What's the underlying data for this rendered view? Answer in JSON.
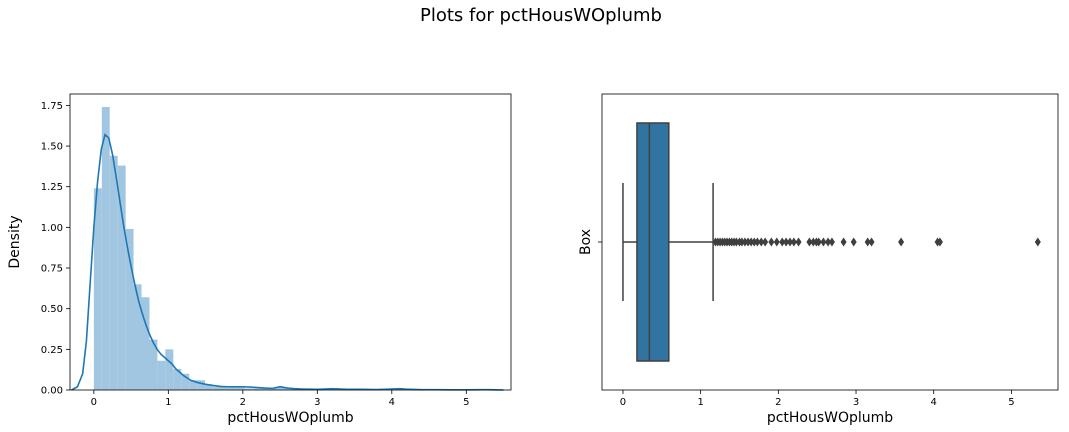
{
  "figure": {
    "title": "Plots for pctHousWOplumb"
  },
  "chart_data": [
    {
      "type": "histogram",
      "title": "",
      "xlabel": "pctHousWOplumb",
      "ylabel": "Density",
      "xlim": [
        -0.32,
        5.6
      ],
      "ylim": [
        0,
        1.82
      ],
      "xticks": [
        0,
        1,
        2,
        3,
        4,
        5
      ],
      "yticks": [
        0.0,
        0.25,
        0.5,
        0.75,
        1.0,
        1.25,
        1.5,
        1.75
      ],
      "bar_color": "#a1c6e1",
      "line_color": "#1f77b4",
      "bins": [
        {
          "x0": 0.0,
          "x1": 0.107,
          "density": 1.24
        },
        {
          "x0": 0.107,
          "x1": 0.213,
          "density": 1.74
        },
        {
          "x0": 0.213,
          "x1": 0.32,
          "density": 1.44
        },
        {
          "x0": 0.32,
          "x1": 0.427,
          "density": 1.38
        },
        {
          "x0": 0.427,
          "x1": 0.533,
          "density": 0.99
        },
        {
          "x0": 0.533,
          "x1": 0.64,
          "density": 0.65
        },
        {
          "x0": 0.64,
          "x1": 0.747,
          "density": 0.57
        },
        {
          "x0": 0.747,
          "x1": 0.853,
          "density": 0.31
        },
        {
          "x0": 0.853,
          "x1": 0.96,
          "density": 0.18
        },
        {
          "x0": 0.96,
          "x1": 1.067,
          "density": 0.25
        },
        {
          "x0": 1.067,
          "x1": 1.173,
          "density": 0.13
        },
        {
          "x0": 1.173,
          "x1": 1.28,
          "density": 0.1
        },
        {
          "x0": 1.28,
          "x1": 1.387,
          "density": 0.06
        },
        {
          "x0": 1.387,
          "x1": 1.493,
          "density": 0.06
        },
        {
          "x0": 1.493,
          "x1": 1.6,
          "density": 0.03
        },
        {
          "x0": 1.6,
          "x1": 1.707,
          "density": 0.02
        },
        {
          "x0": 1.707,
          "x1": 1.813,
          "density": 0.02
        },
        {
          "x0": 1.813,
          "x1": 1.92,
          "density": 0.02
        },
        {
          "x0": 1.92,
          "x1": 2.027,
          "density": 0.02
        },
        {
          "x0": 2.027,
          "x1": 2.133,
          "density": 0.01
        },
        {
          "x0": 2.133,
          "x1": 2.24,
          "density": 0.01
        },
        {
          "x0": 2.24,
          "x1": 2.347,
          "density": 0.01
        },
        {
          "x0": 2.347,
          "x1": 2.453,
          "density": 0.01
        },
        {
          "x0": 2.453,
          "x1": 2.56,
          "density": 0.02
        },
        {
          "x0": 2.56,
          "x1": 2.667,
          "density": 0.01
        },
        {
          "x0": 2.667,
          "x1": 2.773,
          "density": 0.005
        },
        {
          "x0": 2.773,
          "x1": 2.88,
          "density": 0.005
        },
        {
          "x0": 2.88,
          "x1": 2.987,
          "density": 0.005
        },
        {
          "x0": 3.093,
          "x1": 3.2,
          "density": 0.01
        },
        {
          "x0": 3.52,
          "x1": 3.627,
          "density": 0.005
        },
        {
          "x0": 4.053,
          "x1": 4.16,
          "density": 0.01
        },
        {
          "x0": 5.28,
          "x1": 5.387,
          "density": 0.005
        }
      ],
      "kde": {
        "x": [
          -0.3,
          -0.22,
          -0.15,
          -0.1,
          -0.05,
          0.0,
          0.05,
          0.1,
          0.15,
          0.2,
          0.25,
          0.3,
          0.35,
          0.4,
          0.45,
          0.5,
          0.55,
          0.6,
          0.65,
          0.7,
          0.75,
          0.8,
          0.85,
          0.9,
          0.95,
          1.0,
          1.05,
          1.1,
          1.2,
          1.3,
          1.4,
          1.5,
          1.6,
          1.7,
          1.8,
          1.9,
          2.0,
          2.1,
          2.2,
          2.3,
          2.4,
          2.5,
          2.6,
          2.7,
          2.8,
          3.0,
          3.1,
          3.2,
          3.4,
          3.6,
          3.8,
          4.0,
          4.1,
          4.2,
          4.4,
          4.6,
          4.8,
          5.0,
          5.2,
          5.3,
          5.4,
          5.5
        ],
        "y": [
          0.0,
          0.02,
          0.1,
          0.3,
          0.65,
          1.0,
          1.28,
          1.48,
          1.57,
          1.55,
          1.45,
          1.31,
          1.16,
          1.01,
          0.88,
          0.76,
          0.65,
          0.55,
          0.47,
          0.4,
          0.34,
          0.29,
          0.25,
          0.22,
          0.2,
          0.18,
          0.16,
          0.13,
          0.09,
          0.06,
          0.045,
          0.035,
          0.028,
          0.022,
          0.02,
          0.02,
          0.02,
          0.018,
          0.015,
          0.012,
          0.01,
          0.02,
          0.012,
          0.008,
          0.006,
          0.004,
          0.006,
          0.008,
          0.004,
          0.004,
          0.003,
          0.006,
          0.008,
          0.005,
          0.002,
          0.002,
          0.001,
          0.001,
          0.002,
          0.002,
          0.001,
          0.0
        ]
      }
    },
    {
      "type": "box",
      "title": "",
      "xlabel": "pctHousWOplumb",
      "ylabel": "Box",
      "xlim": [
        -0.27,
        5.6
      ],
      "xticks": [
        0,
        1,
        2,
        3,
        4,
        5
      ],
      "box_color": "#3274a1",
      "edge_color": "#3f3f3f",
      "stats": {
        "whisker_low": 0.0,
        "q1": 0.18,
        "median": 0.34,
        "q3": 0.59,
        "whisker_high": 1.16
      },
      "outliers": [
        1.19,
        1.22,
        1.25,
        1.28,
        1.31,
        1.34,
        1.37,
        1.4,
        1.43,
        1.46,
        1.5,
        1.53,
        1.57,
        1.61,
        1.65,
        1.69,
        1.73,
        1.78,
        1.83,
        1.91,
        1.98,
        2.05,
        2.1,
        2.15,
        2.2,
        2.26,
        2.4,
        2.45,
        2.49,
        2.52,
        2.58,
        2.64,
        2.69,
        2.84,
        2.97,
        3.15,
        3.2,
        3.58,
        4.05,
        4.08,
        5.34
      ]
    }
  ]
}
